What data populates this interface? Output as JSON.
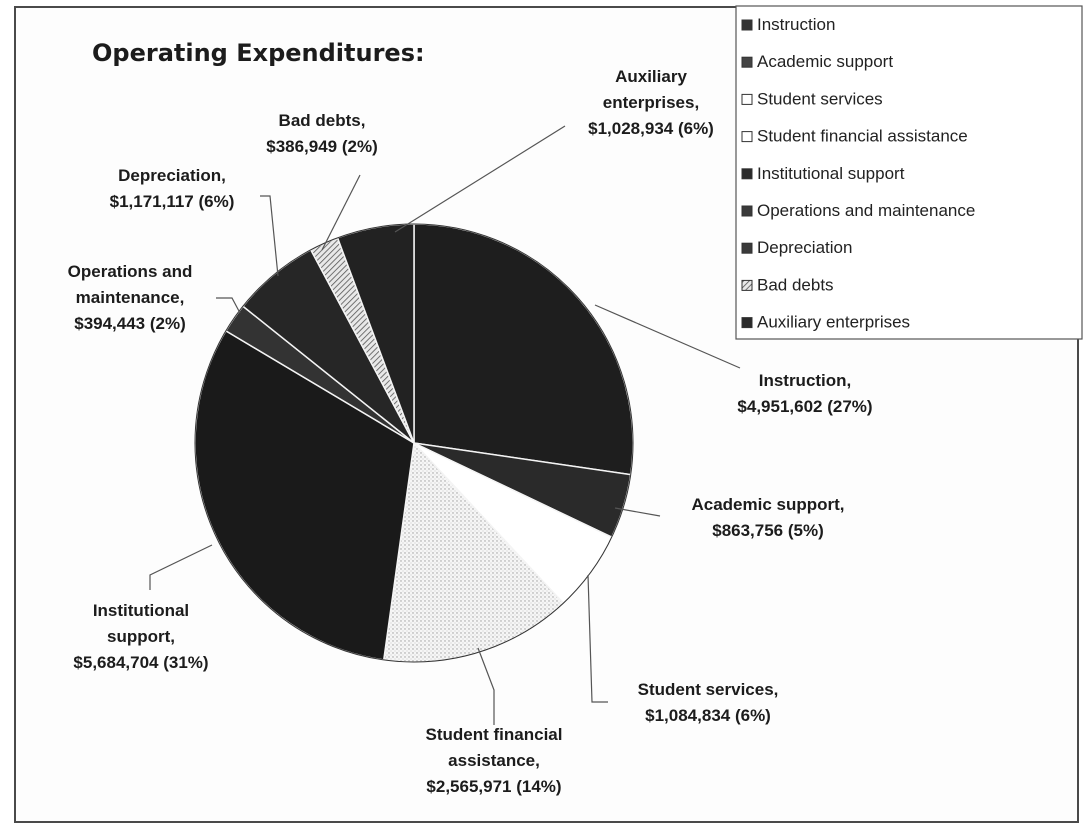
{
  "chart_data": {
    "type": "pie",
    "title": "Operating Expenditures:",
    "legend_position": "top-right",
    "slices": [
      {
        "name": "Instruction",
        "value": 4951602,
        "label_lines": [
          "Instruction,",
          "$4,951,602 (27%)"
        ],
        "color": "#1e1e1e"
      },
      {
        "name": "Academic support",
        "value": 863756,
        "label_lines": [
          "Academic support,",
          "$863,756 (5%)"
        ],
        "color": "#2a2a2a"
      },
      {
        "name": "Student services",
        "value": 1084834,
        "label_lines": [
          "Student services,",
          "$1,084,834 (6%)"
        ],
        "color": "#ffffff"
      },
      {
        "name": "Student financial assistance",
        "value": 2565971,
        "label_lines": [
          "Student financial",
          "assistance,",
          "$2,565,971 (14%)"
        ],
        "color": "#f2f2f2"
      },
      {
        "name": "Institutional support",
        "value": 5684704,
        "label_lines": [
          "Institutional",
          "support,",
          "$5,684,704 (31%)"
        ],
        "color": "#1a1a1a"
      },
      {
        "name": "Operations and maintenance",
        "value": 394443,
        "label_lines": [
          "Operations and",
          "maintenance,",
          "$394,443 (2%)"
        ],
        "color": "#333333"
      },
      {
        "name": "Depreciation",
        "value": 1171117,
        "label_lines": [
          "Depreciation,",
          "$1,171,117 (6%)"
        ],
        "color": "#262626"
      },
      {
        "name": "Bad debts",
        "value": 386949,
        "label_lines": [
          "Bad debts,",
          "$386,949 (2%)"
        ],
        "color": "#bdbdbd"
      },
      {
        "name": "Auxiliary enterprises",
        "value": 1028934,
        "label_lines": [
          "Auxiliary",
          "enterprises,",
          "$1,028,934 (6%)"
        ],
        "color": "#222222"
      }
    ],
    "legend": [
      {
        "label": "Instruction",
        "swatch": "#333333"
      },
      {
        "label": "Academic support",
        "swatch": "#444444"
      },
      {
        "label": "Student services",
        "swatch": "#ffffff"
      },
      {
        "label": "Student financial assistance",
        "swatch": "#ffffff"
      },
      {
        "label": "Institutional support",
        "swatch": "#2a2a2a"
      },
      {
        "label": "Operations and maintenance",
        "swatch": "#3a3a3a"
      },
      {
        "label": "Depreciation",
        "swatch": "#3a3a3a"
      },
      {
        "label": "Bad debts",
        "swatch": "#bdbdbd"
      },
      {
        "label": "Auxiliary enterprises",
        "swatch": "#2a2a2a"
      }
    ]
  }
}
